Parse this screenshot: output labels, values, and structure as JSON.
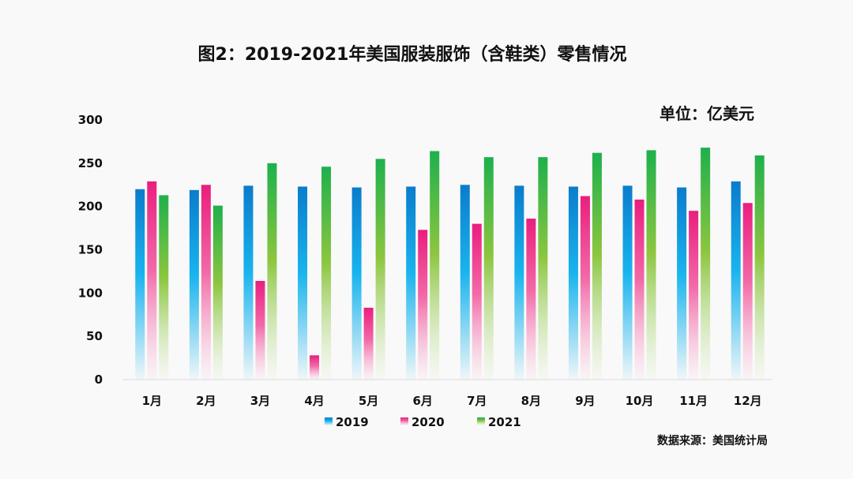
{
  "chart_data": {
    "type": "bar",
    "title": "图2：2019-2021年美国服装服饰（含鞋类）零售情况",
    "unit_label": "单位：亿美元",
    "source": "数据来源：美国统计局",
    "xlabel": "",
    "ylabel": "",
    "ylim": [
      0,
      300
    ],
    "yticks": [
      0,
      50,
      100,
      150,
      200,
      250,
      300
    ],
    "grid": false,
    "legend_position": "bottom",
    "categories": [
      "1月",
      "2月",
      "3月",
      "4月",
      "5月",
      "6月",
      "7月",
      "8月",
      "9月",
      "10月",
      "11月",
      "12月"
    ],
    "series": [
      {
        "name": "2019",
        "color": "#0a7ccc",
        "values": [
          220,
          219,
          224,
          223,
          222,
          223,
          225,
          224,
          223,
          224,
          222,
          229
        ]
      },
      {
        "name": "2020",
        "color": "#ea1e7e",
        "values": [
          229,
          225,
          114,
          28,
          83,
          173,
          180,
          186,
          212,
          208,
          195,
          204
        ]
      },
      {
        "name": "2021",
        "color": "#1eb04c",
        "values": [
          213,
          201,
          250,
          246,
          255,
          264,
          257,
          257,
          262,
          265,
          268,
          259
        ]
      }
    ]
  }
}
